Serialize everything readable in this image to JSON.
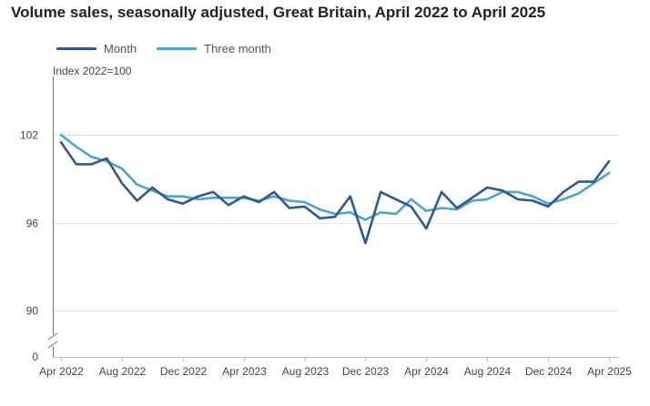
{
  "chart_data": {
    "type": "line",
    "title": "Volume sales, seasonally adjusted, Great Britain, April 2022 to April 2025",
    "unit_label": "Index 2022=100",
    "y_axis": {
      "ticks": [
        90,
        96,
        102
      ],
      "zero_label": "0",
      "range": [
        89,
        106
      ],
      "broken_axis": true
    },
    "x_axis": {
      "ticks": [
        {
          "label": "Apr 2022",
          "index": 0
        },
        {
          "label": "Aug 2022",
          "index": 4
        },
        {
          "label": "Dec 2022",
          "index": 8
        },
        {
          "label": "Apr 2023",
          "index": 12
        },
        {
          "label": "Aug 2023",
          "index": 16
        },
        {
          "label": "Dec 2023",
          "index": 20
        },
        {
          "label": "Apr 2024",
          "index": 24
        },
        {
          "label": "Aug 2024",
          "index": 28
        },
        {
          "label": "Dec 2024",
          "index": 32
        },
        {
          "label": "Apr 2025",
          "index": 36
        }
      ]
    },
    "grid": true,
    "legend_position": "top-left",
    "series": [
      {
        "name": "Month",
        "color": "#2e5b8a",
        "values": [
          101.5,
          100.0,
          100.0,
          100.4,
          98.7,
          97.5,
          98.4,
          97.6,
          97.3,
          97.8,
          98.1,
          97.2,
          97.8,
          97.4,
          98.1,
          97.0,
          97.1,
          96.3,
          96.4,
          97.8,
          94.6,
          98.1,
          97.6,
          97.1,
          95.6,
          98.1,
          97.0,
          97.7,
          98.4,
          98.2,
          97.6,
          97.5,
          97.1,
          98.1,
          98.8,
          98.8,
          100.2
        ]
      },
      {
        "name": "Three month",
        "color": "#4fa3cc",
        "values": [
          102.0,
          101.2,
          100.5,
          100.2,
          99.7,
          98.6,
          98.2,
          97.8,
          97.8,
          97.6,
          97.7,
          97.7,
          97.7,
          97.5,
          97.8,
          97.5,
          97.4,
          96.9,
          96.6,
          96.7,
          96.2,
          96.7,
          96.6,
          97.6,
          96.8,
          97.0,
          96.9,
          97.5,
          97.6,
          98.1,
          98.1,
          97.8,
          97.3,
          97.6,
          98.0,
          98.7,
          99.4
        ]
      }
    ]
  }
}
